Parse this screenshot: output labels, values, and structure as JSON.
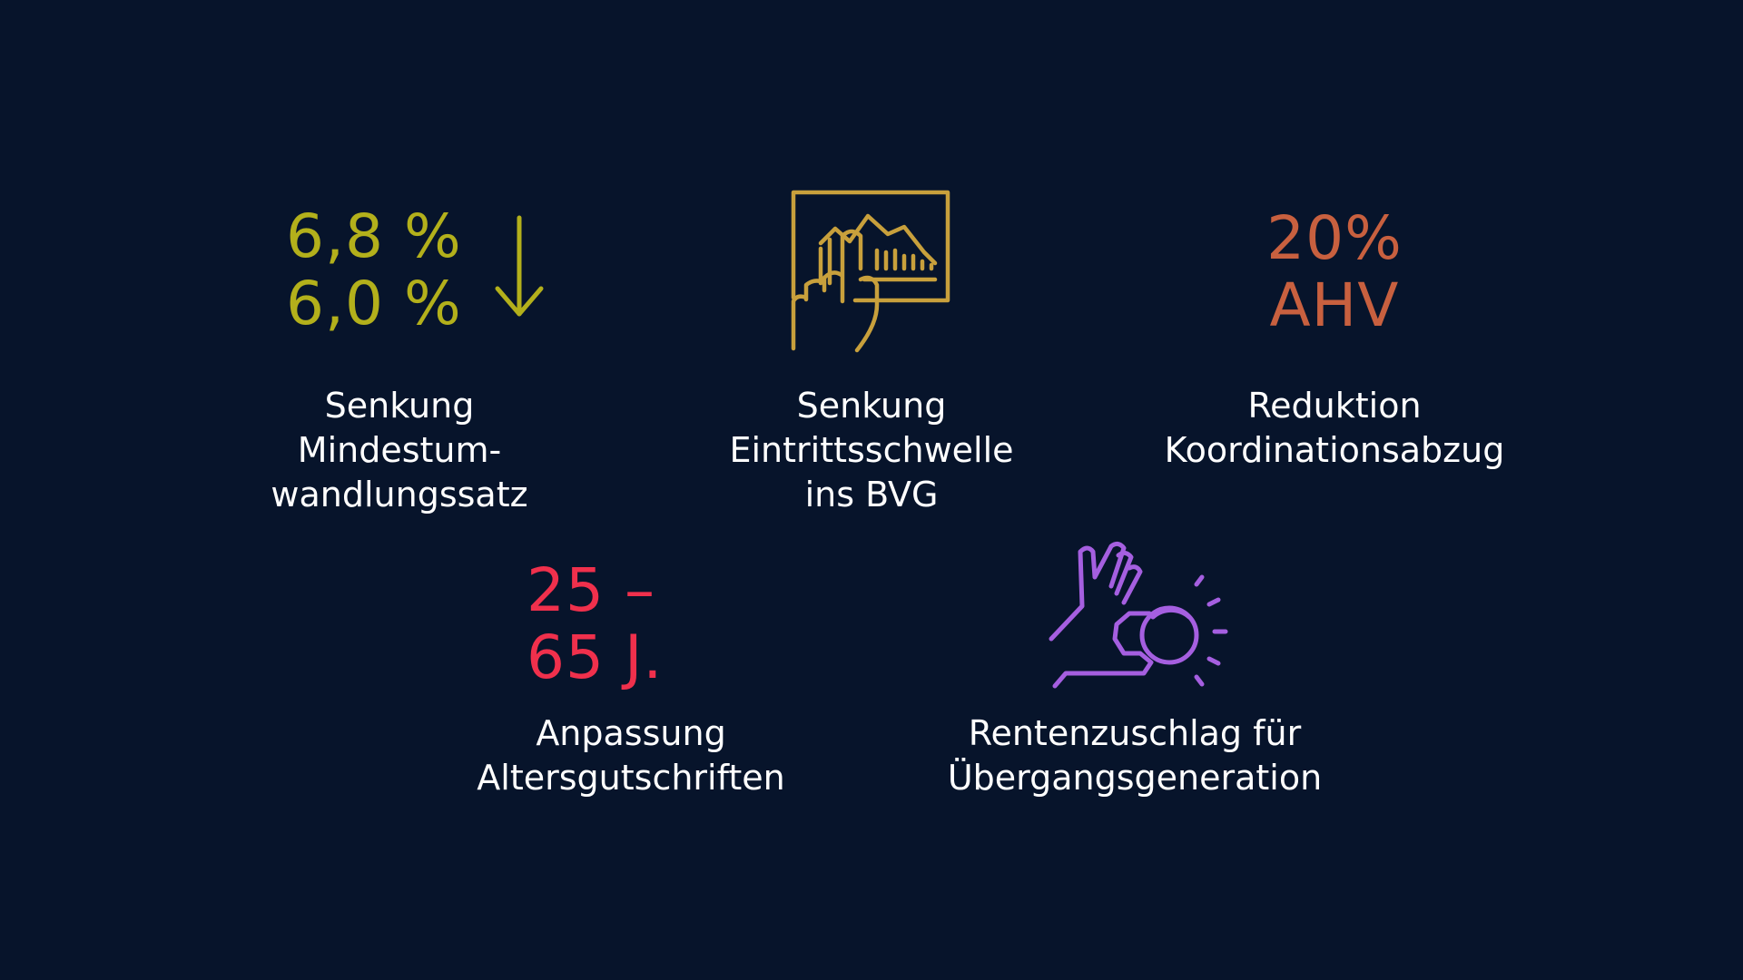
{
  "colors": {
    "background": "#07142b",
    "olive": "#b3b01b",
    "gold": "#c8a03c",
    "terracotta": "#c8603f",
    "red": "#f0304c",
    "purple": "#a55fe0",
    "text": "#ffffff"
  },
  "items": [
    {
      "stat_lines": [
        "6,8 %",
        "6,0 %"
      ],
      "icon": "arrow-down-icon",
      "label_lines": [
        "Senkung",
        "Mindestum-",
        "wandlungssatz"
      ]
    },
    {
      "icon": "touch-chart-icon",
      "label_lines": [
        "Senkung",
        "Eintrittsschwelle",
        "ins BVG"
      ]
    },
    {
      "stat_lines": [
        "20%",
        "AHV"
      ],
      "label_lines": [
        "Reduktion",
        "Koordinationsabzug"
      ]
    },
    {
      "stat_lines": [
        "25 –",
        "65 J."
      ],
      "label_lines": [
        "Anpassung",
        "Altersgutschriften"
      ]
    },
    {
      "icon": "hand-coin-icon",
      "label_lines": [
        "Rentenzuschlag für",
        "Übergangsgeneration"
      ]
    }
  ]
}
